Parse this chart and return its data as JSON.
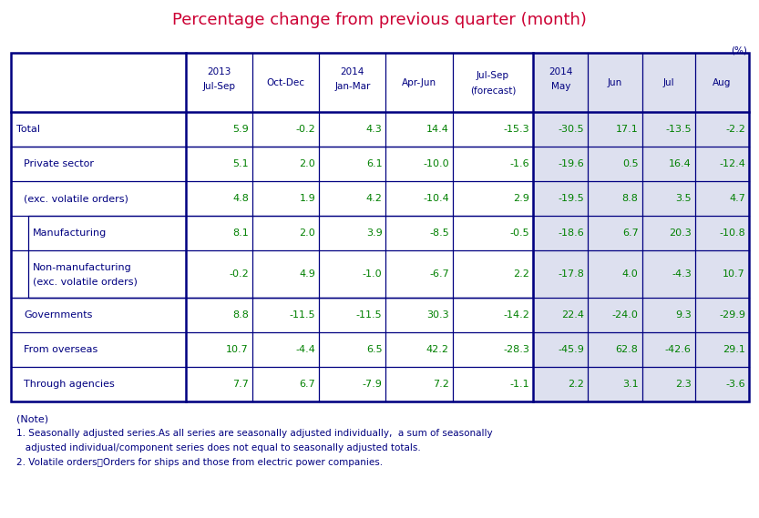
{
  "title": "Percentage change from previous quarter (month)",
  "title_color": "#cc0033",
  "unit_label": "(%)",
  "col_header_line1": [
    "2013",
    "",
    "2014",
    "",
    "",
    "2014",
    "",
    "",
    ""
  ],
  "col_header_line2": [
    "Jul-Sep",
    "Oct-Dec",
    "Jan-Mar",
    "Apr-Jun",
    "Jul-Sep",
    "May",
    "Jun",
    "Jul",
    "Aug"
  ],
  "col_header_line3": [
    "",
    "",
    "",
    "",
    "(forecast)",
    "",
    "",
    "",
    ""
  ],
  "rows": [
    {
      "label": "Total",
      "indent": 0,
      "values": [
        "5.9",
        "-0.2",
        "4.3",
        "14.4",
        "-15.3",
        "-30.5",
        "17.1",
        "-13.5",
        "-2.2"
      ],
      "bold_label": false,
      "tall": false
    },
    {
      "label": "Private sector",
      "indent": 1,
      "values": [
        "5.1",
        "2.0",
        "6.1",
        "-10.0",
        "-1.6",
        "-19.6",
        "0.5",
        "16.4",
        "-12.4"
      ],
      "bold_label": false,
      "tall": false
    },
    {
      "label": "(exc. volatile orders)",
      "indent": 1,
      "values": [
        "4.8",
        "1.9",
        "4.2",
        "-10.4",
        "2.9",
        "-19.5",
        "8.8",
        "3.5",
        "4.7"
      ],
      "bold_label": false,
      "tall": false
    },
    {
      "label": "Manufacturing",
      "indent": 2,
      "values": [
        "8.1",
        "2.0",
        "3.9",
        "-8.5",
        "-0.5",
        "-18.6",
        "6.7",
        "20.3",
        "-10.8"
      ],
      "bold_label": false,
      "tall": false
    },
    {
      "label": "Non-manufacturing\n(exc. volatile orders)",
      "indent": 2,
      "values": [
        "-0.2",
        "4.9",
        "-1.0",
        "-6.7",
        "2.2",
        "-17.8",
        "4.0",
        "-4.3",
        "10.7"
      ],
      "bold_label": false,
      "tall": true
    },
    {
      "label": "Governments",
      "indent": 1,
      "values": [
        "8.8",
        "-11.5",
        "-11.5",
        "30.3",
        "-14.2",
        "22.4",
        "-24.0",
        "9.3",
        "-29.9"
      ],
      "bold_label": false,
      "tall": false
    },
    {
      "label": "From overseas",
      "indent": 1,
      "values": [
        "10.7",
        "-4.4",
        "6.5",
        "42.2",
        "-28.3",
        "-45.9",
        "62.8",
        "-42.6",
        "29.1"
      ],
      "bold_label": false,
      "tall": false
    },
    {
      "label": "Through agencies",
      "indent": 1,
      "values": [
        "7.7",
        "6.7",
        "-7.9",
        "7.2",
        "-1.1",
        "2.2",
        "3.1",
        "2.3",
        "-3.6"
      ],
      "bold_label": false,
      "tall": false
    }
  ],
  "notes": [
    "(Note)",
    "1. Seasonally adjusted series.As all series are seasonally adjusted individually,  a sum of seasonally",
    "   adjusted individual/component series does not equal to seasonally adjusted totals.",
    "2. Volatile orders：Orders for ships and those from electric power companies."
  ],
  "table_border_color": "#000080",
  "header_text_color": "#000080",
  "data_text_color": "#008000",
  "label_text_color": "#000080",
  "note_text_color": "#000080",
  "background_color": "#ffffff",
  "shaded_color": "#dde0ef"
}
